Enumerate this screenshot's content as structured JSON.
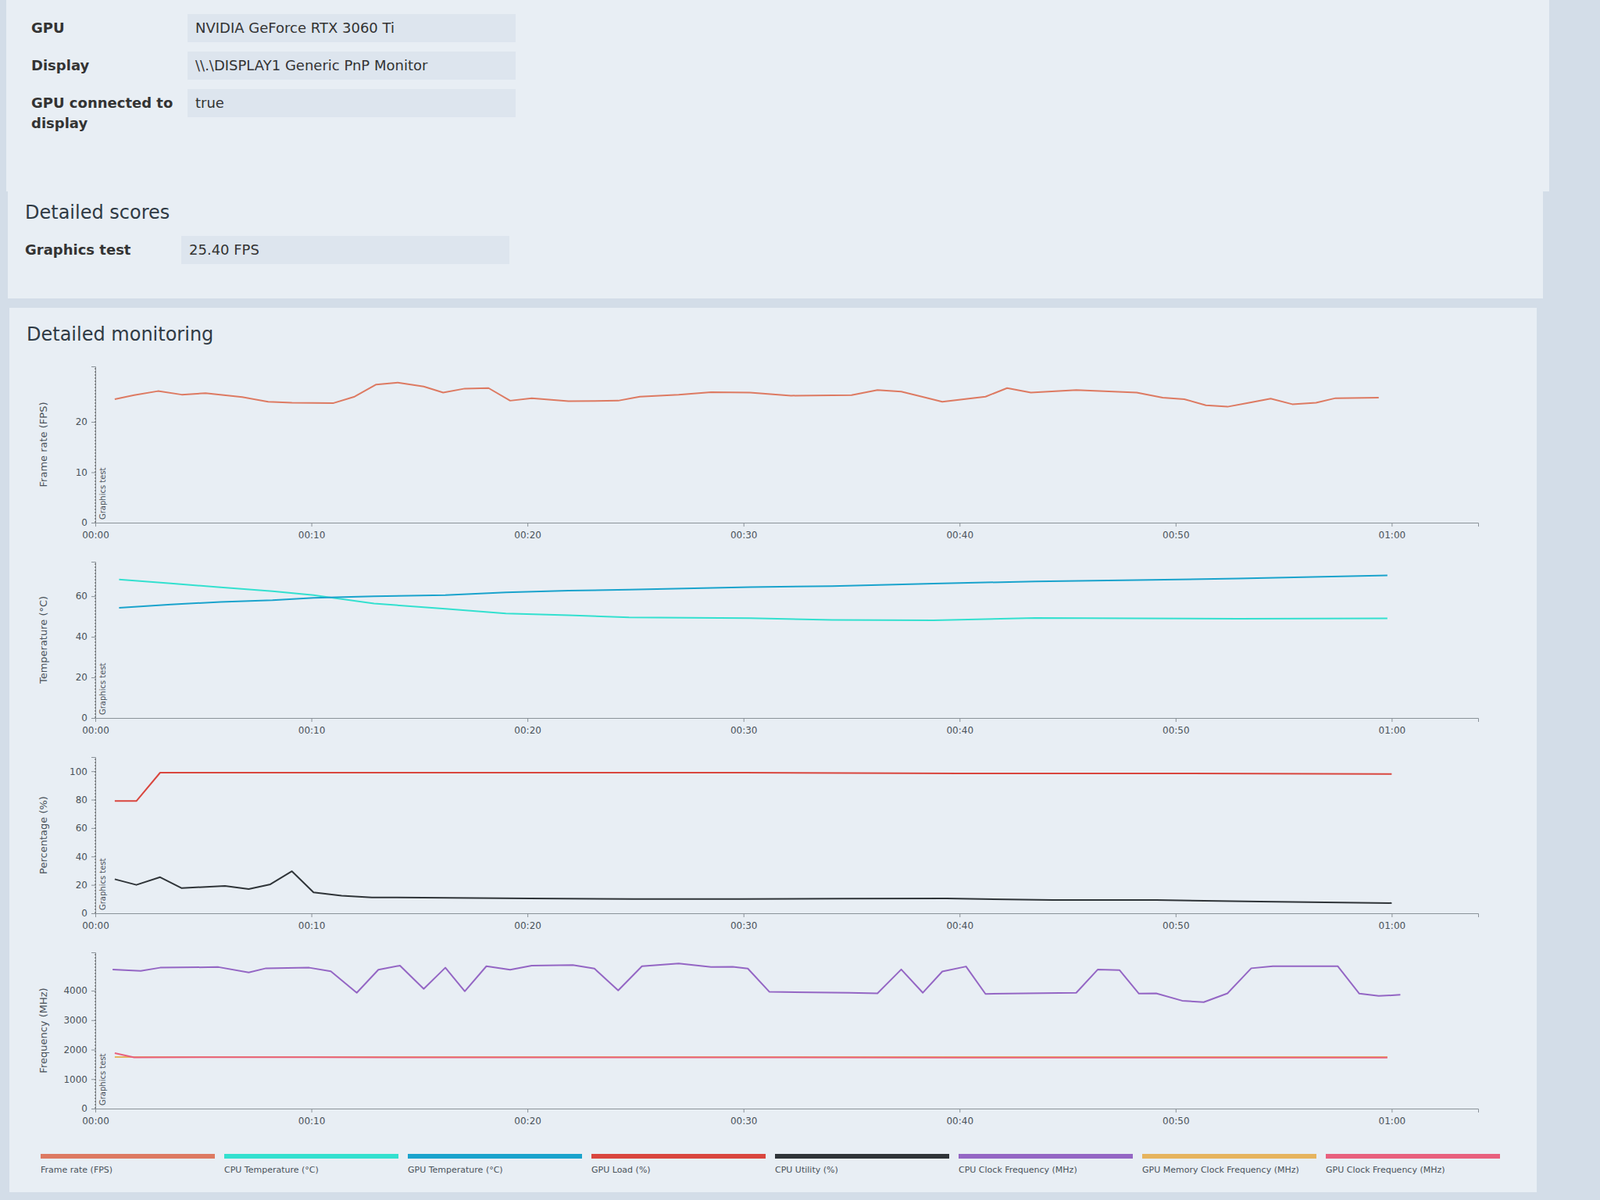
{
  "info": [
    {
      "label": "GPU",
      "value": "NVIDIA GeForce RTX 3060 Ti"
    },
    {
      "label": "Display",
      "value": "\\\\.\\DISPLAY1 Generic PnP Monitor"
    },
    {
      "label": "GPU connected to display",
      "value": "true"
    }
  ],
  "scores": {
    "title": "Detailed scores",
    "rows": [
      {
        "label": "Graphics test",
        "value": "25.40 FPS"
      }
    ]
  },
  "monitoring": {
    "title": "Detailed monitoring",
    "legend": "bottom"
  },
  "chart_data": [
    {
      "type": "line",
      "y_label": "Frame rate (FPS)",
      "grid": false,
      "annotations": [
        {
          "x": 0,
          "text": "Graphics test"
        }
      ],
      "xlim": [
        0,
        64
      ],
      "xticks": [
        {
          "value": 0,
          "label": "00:00"
        },
        {
          "value": 10,
          "label": "00:10"
        },
        {
          "value": 20,
          "label": "00:20"
        },
        {
          "value": 30,
          "label": "00:30"
        },
        {
          "value": 40,
          "label": "00:40"
        },
        {
          "value": 50,
          "label": "00:50"
        },
        {
          "value": 60,
          "label": "01:00"
        }
      ],
      "ylim": [
        0,
        31
      ],
      "yticks": [
        0,
        10,
        20
      ],
      "series": [
        {
          "name": "Frame rate (FPS)",
          "color": "#dd7a62",
          "x": [
            0.9,
            1.8,
            2.9,
            4.0,
            5.1,
            6.8,
            8.0,
            9.1,
            11.0,
            12.0,
            13.0,
            14.0,
            15.2,
            16.1,
            17.1,
            18.2,
            19.2,
            20.2,
            21.9,
            24.2,
            25.2,
            27.0,
            28.5,
            30.3,
            32.2,
            35.0,
            36.2,
            37.3,
            39.2,
            41.2,
            42.2,
            43.3,
            45.4,
            48.2,
            49.4,
            50.4,
            51.4,
            52.4,
            53.4,
            54.4,
            55.4,
            56.5,
            57.4,
            59.4
          ],
          "values": [
            24.5,
            25.3,
            26.1,
            25.4,
            25.7,
            24.9,
            24.0,
            23.8,
            23.7,
            25.0,
            27.4,
            27.8,
            27.0,
            25.8,
            26.6,
            26.7,
            24.2,
            24.7,
            24.1,
            24.2,
            25.0,
            25.4,
            25.9,
            25.8,
            25.2,
            25.3,
            26.3,
            26.0,
            24.0,
            25.0,
            26.7,
            25.8,
            26.3,
            25.8,
            24.8,
            24.5,
            23.3,
            23.0,
            23.8,
            24.6,
            23.5,
            23.8,
            24.7,
            24.8
          ]
        }
      ]
    },
    {
      "type": "line",
      "y_label": "Temperature (°C)",
      "grid": false,
      "annotations": [
        {
          "x": 0,
          "text": "Graphics test"
        }
      ],
      "xlim": [
        0,
        64
      ],
      "xticks": [
        {
          "value": 0,
          "label": "00:00"
        },
        {
          "value": 10,
          "label": "00:10"
        },
        {
          "value": 20,
          "label": "00:20"
        },
        {
          "value": 30,
          "label": "00:30"
        },
        {
          "value": 40,
          "label": "00:40"
        },
        {
          "value": 50,
          "label": "00:50"
        },
        {
          "value": 60,
          "label": "01:00"
        }
      ],
      "ylim": [
        0,
        77
      ],
      "yticks": [
        0,
        20,
        40,
        60
      ],
      "series": [
        {
          "name": "CPU Temperature (°C)",
          "color": "#33e0cf",
          "x": [
            1.1,
            3.5,
            5.8,
            8.2,
            10.1,
            12.9,
            16.2,
            19.0,
            21.9,
            24.7,
            30.3,
            34.1,
            38.8,
            43.5,
            48.2,
            52.9,
            59.8
          ],
          "values": [
            68.2,
            66.3,
            64.4,
            62.5,
            60.5,
            56.4,
            53.8,
            51.5,
            50.6,
            49.6,
            49.2,
            48.3,
            48.1,
            49.3,
            49.1,
            48.9,
            49.1
          ]
        },
        {
          "name": "GPU Temperature (°C)",
          "color": "#1aa3cc",
          "x": [
            1.1,
            3.5,
            5.8,
            8.2,
            10.1,
            12.9,
            16.2,
            19.0,
            21.9,
            24.7,
            30.3,
            34.1,
            38.8,
            43.5,
            48.2,
            52.9,
            59.8
          ],
          "values": [
            54.3,
            55.9,
            57.2,
            58.0,
            59.2,
            60.0,
            60.5,
            61.9,
            62.8,
            63.2,
            64.5,
            65.0,
            66.2,
            67.3,
            68.0,
            68.7,
            70.3
          ]
        }
      ]
    },
    {
      "type": "line",
      "y_label": "Percentage (%)",
      "grid": false,
      "annotations": [
        {
          "x": 0,
          "text": "Graphics test"
        }
      ],
      "xlim": [
        0,
        64
      ],
      "xticks": [
        {
          "value": 0,
          "label": "00:00"
        },
        {
          "value": 10,
          "label": "00:10"
        },
        {
          "value": 20,
          "label": "00:20"
        },
        {
          "value": 30,
          "label": "00:30"
        },
        {
          "value": 40,
          "label": "00:40"
        },
        {
          "value": 50,
          "label": "00:50"
        },
        {
          "value": 60,
          "label": "01:00"
        }
      ],
      "ylim": [
        0,
        110
      ],
      "yticks": [
        0,
        20,
        40,
        60,
        80,
        100
      ],
      "series": [
        {
          "name": "GPU Load (%)",
          "color": "#d9463e",
          "x": [
            0.9,
            1.9,
            3.0,
            10,
            20,
            30,
            40,
            50,
            60
          ],
          "values": [
            79,
            79,
            99,
            99,
            99,
            99,
            98.5,
            98.5,
            98
          ]
        },
        {
          "name": "CPU Utility (%)",
          "color": "#2f3438",
          "x": [
            0.9,
            1.9,
            3.0,
            4.0,
            6.0,
            7.1,
            8.1,
            9.1,
            10.1,
            11.4,
            12.8,
            20.1,
            24.9,
            29.8,
            34.6,
            39.4,
            44.3,
            49.1,
            53.9,
            60.0
          ],
          "values": [
            24.0,
            20.0,
            25.4,
            17.7,
            19.3,
            17.0,
            20.4,
            29.6,
            14.7,
            12.4,
            11.2,
            10.5,
            10.0,
            10.0,
            10.3,
            10.4,
            9.3,
            9.4,
            8.2,
            7.2
          ]
        }
      ]
    },
    {
      "type": "line",
      "y_label": "Frequency (MHz)",
      "grid": false,
      "annotations": [
        {
          "x": 0,
          "text": "Graphics test"
        }
      ],
      "xlim": [
        0,
        64
      ],
      "xticks": [
        {
          "value": 0,
          "label": "00:00"
        },
        {
          "value": 10,
          "label": "00:10"
        },
        {
          "value": 20,
          "label": "00:20"
        },
        {
          "value": 30,
          "label": "00:30"
        },
        {
          "value": 40,
          "label": "00:40"
        },
        {
          "value": 50,
          "label": "00:50"
        },
        {
          "value": 60,
          "label": "01:00"
        }
      ],
      "ylim": [
        0,
        5300
      ],
      "yticks": [
        0,
        1000,
        2000,
        3000,
        4000
      ],
      "series": [
        {
          "name": "CPU Clock Frequency (MHz)",
          "color": "#9466c4",
          "x": [
            0.8,
            2.1,
            3.0,
            5.7,
            7.1,
            7.9,
            9.9,
            10.9,
            12.1,
            13.1,
            14.1,
            15.2,
            16.2,
            17.1,
            18.1,
            19.2,
            20.2,
            22.1,
            23.1,
            24.2,
            25.3,
            27.0,
            28.5,
            29.5,
            30.2,
            31.2,
            34.9,
            36.2,
            37.3,
            38.3,
            39.2,
            40.3,
            41.2,
            45.4,
            46.4,
            47.4,
            48.3,
            49.1,
            50.3,
            51.3,
            52.4,
            53.5,
            54.5,
            57.5,
            58.5,
            59.4,
            60.4
          ],
          "values": [
            4720,
            4670,
            4780,
            4800,
            4620,
            4760,
            4780,
            4660,
            3930,
            4710,
            4850,
            4060,
            4780,
            3980,
            4830,
            4710,
            4850,
            4870,
            4750,
            4010,
            4830,
            4920,
            4800,
            4810,
            4750,
            3960,
            3930,
            3910,
            4720,
            3930,
            4650,
            4820,
            3890,
            3930,
            4720,
            4700,
            3900,
            3910,
            3660,
            3610,
            3910,
            4760,
            4830,
            4830,
            3900,
            3820,
            3860
          ]
        },
        {
          "name": "GPU Memory Clock Frequency (MHz)",
          "color": "#e6b45e",
          "x": [
            0.9,
            59.8
          ],
          "values": [
            1750,
            1750
          ]
        },
        {
          "name": "GPU Clock Frequency (MHz)",
          "color": "#e8607e",
          "x": [
            0.9,
            1.8,
            5,
            10,
            20,
            30,
            40,
            50,
            59.8
          ],
          "values": [
            1880,
            1735,
            1740,
            1740,
            1735,
            1735,
            1730,
            1730,
            1727
          ]
        }
      ]
    }
  ]
}
